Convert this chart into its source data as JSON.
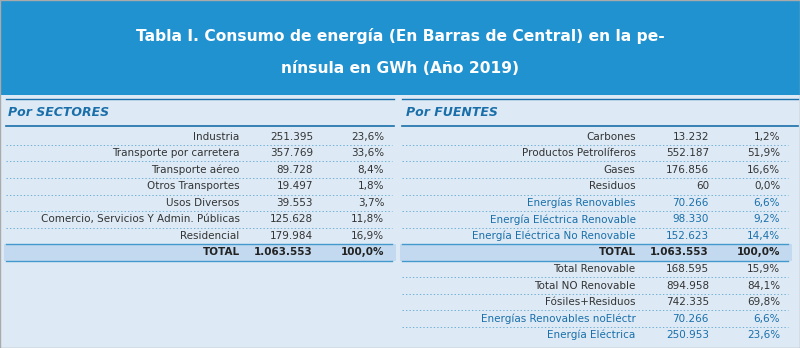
{
  "title_line1": "Tabla I. Consumo de energía (En Barras de Central) en la pe-",
  "title_line2": "nínsula en GWh (Año 2019)",
  "title_bg": "#2192d0",
  "title_color": "#ffffff",
  "header_left": "Por SECTORES",
  "header_right": "Por FUENTES",
  "header_color": "#1a6faa",
  "body_bg": "#ddeaf5",
  "total_bg": "#c2d9ef",
  "sectors": [
    [
      "Industria",
      "251.395",
      "23,6%"
    ],
    [
      "Transporte por carretera",
      "357.769",
      "33,6%"
    ],
    [
      "Transporte aéreo",
      "89.728",
      "8,4%"
    ],
    [
      "Otros Transportes",
      "19.497",
      "1,8%"
    ],
    [
      "Usos Diversos",
      "39.553",
      "3,7%"
    ],
    [
      "Comercio, Servicios Y Admin. Públicas",
      "125.628",
      "11,8%"
    ],
    [
      "Residencial",
      "179.984",
      "16,9%"
    ],
    [
      "TOTAL",
      "1.063.553",
      "100,0%"
    ]
  ],
  "fuentes": [
    [
      "Carbones",
      "13.232",
      "1,2%"
    ],
    [
      "Productos Petrolíferos",
      "552.187",
      "51,9%"
    ],
    [
      "Gases",
      "176.856",
      "16,6%"
    ],
    [
      "Residuos",
      "60",
      "0,0%"
    ],
    [
      "Energías Renovables",
      "70.266",
      "6,6%"
    ],
    [
      "Energía Eléctrica Renovable",
      "98.330",
      "9,2%"
    ],
    [
      "Energía Eléctrica No Renovable",
      "152.623",
      "14,4%"
    ],
    [
      "TOTAL",
      "1.063.553",
      "100,0%"
    ],
    [
      "Total Renovable",
      "168.595",
      "15,9%"
    ],
    [
      "Total NO Renovable",
      "894.958",
      "84,1%"
    ],
    [
      "Fósiles+Residuos",
      "742.335",
      "69,8%"
    ],
    [
      "Energías Renovables noEléctr",
      "70.266",
      "6,6%"
    ],
    [
      "Energía Eléctrica",
      "250.953",
      "23,6%"
    ]
  ],
  "blue_rows_fuentes": [
    4,
    5,
    6,
    11,
    12
  ],
  "blue_rows_sectors": [],
  "total_row_sector": 7,
  "total_row_fuente": 7,
  "divider_color": "#4499cc",
  "bg_color": "#ffffff"
}
